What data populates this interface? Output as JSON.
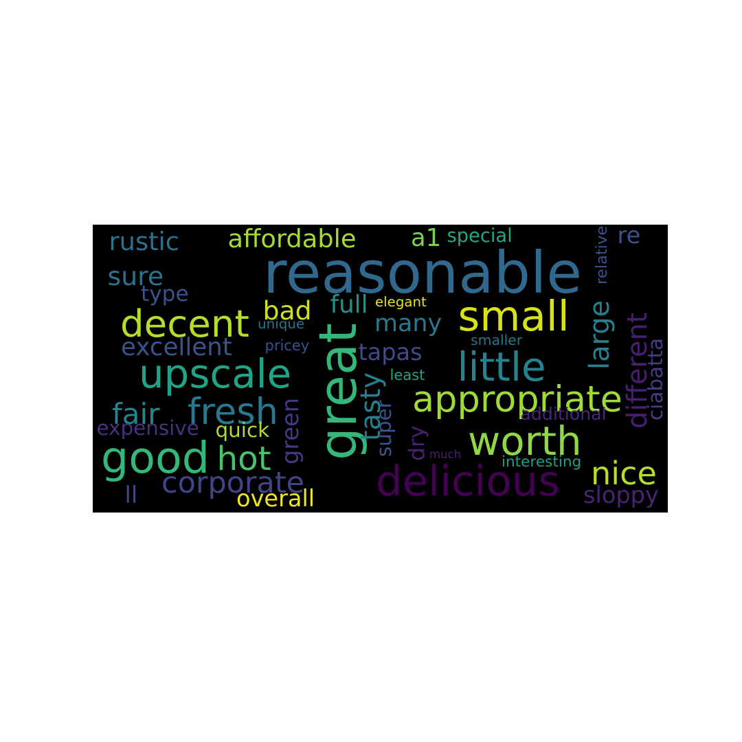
{
  "background": "#000000",
  "page_background": "#ffffff",
  "colormap": "viridis",
  "words": [
    {
      "text": "reasonable",
      "color": "#31688e"
    },
    {
      "text": "great",
      "color": "#35b779"
    },
    {
      "text": "small",
      "color": "#d8e219"
    },
    {
      "text": "delicious",
      "color": "#440154"
    },
    {
      "text": "good",
      "color": "#35b779"
    },
    {
      "text": "upscale",
      "color": "#20a386"
    },
    {
      "text": "worth",
      "color": "#8fd744"
    },
    {
      "text": "little",
      "color": "#26828e"
    },
    {
      "text": "decent",
      "color": "#b5de2b"
    },
    {
      "text": "appropriate",
      "color": "#a0da39"
    },
    {
      "text": "fresh",
      "color": "#2a788e"
    },
    {
      "text": "hot",
      "color": "#4ac16d"
    },
    {
      "text": "nice",
      "color": "#b5de2b"
    },
    {
      "text": "corporate",
      "color": "#414487"
    },
    {
      "text": "excellent",
      "color": "#3b528b"
    },
    {
      "text": "rustic",
      "color": "#2c728e"
    },
    {
      "text": "affordable",
      "color": "#a5db36"
    },
    {
      "text": "tasty",
      "color": "#287d8e"
    },
    {
      "text": "large",
      "color": "#277f8e"
    },
    {
      "text": "different",
      "color": "#481f70"
    },
    {
      "text": "fair",
      "color": "#25848e"
    },
    {
      "text": "many",
      "color": "#2a788e"
    },
    {
      "text": "sure",
      "color": "#2c728e"
    },
    {
      "text": "tapas",
      "color": "#3e4a89"
    },
    {
      "text": "bad",
      "color": "#d0e11c"
    },
    {
      "text": "full",
      "color": "#21918c"
    },
    {
      "text": "overall",
      "color": "#f1e51d"
    },
    {
      "text": "expensive",
      "color": "#46327e"
    },
    {
      "text": "sloppy",
      "color": "#482475"
    },
    {
      "text": "quick",
      "color": "#addc30"
    },
    {
      "text": "type",
      "color": "#3b528b"
    },
    {
      "text": "green",
      "color": "#443a83"
    },
    {
      "text": "super",
      "color": "#3b528b"
    },
    {
      "text": "dry",
      "color": "#482173"
    },
    {
      "text": "ll",
      "color": "#3e4989"
    },
    {
      "text": "a1",
      "color": "#7ad151"
    },
    {
      "text": "re",
      "color": "#3b528b"
    },
    {
      "text": "ciabatta",
      "color": "#433e85"
    },
    {
      "text": "special",
      "color": "#22a884"
    },
    {
      "text": "additional",
      "color": "#482878"
    },
    {
      "text": "elegant",
      "color": "#e5e419"
    },
    {
      "text": "unique",
      "color": "#2c728e"
    },
    {
      "text": "pricey",
      "color": "#3b528b"
    },
    {
      "text": "smaller",
      "color": "#2c728e"
    },
    {
      "text": "least",
      "color": "#20a386"
    },
    {
      "text": "interesting",
      "color": "#1f9e89"
    },
    {
      "text": "much",
      "color": "#481f70"
    },
    {
      "text": "relative",
      "color": "#3b528b"
    }
  ]
}
